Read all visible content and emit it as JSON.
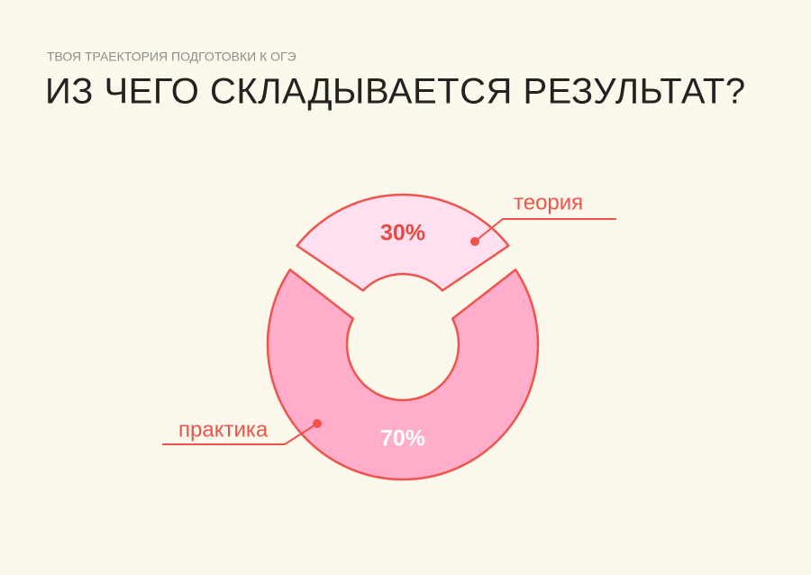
{
  "subtitle": "ТВОЯ ТРАЕКТОРИЯ ПОДГОТОВКИ К ОГЭ",
  "chart_data": {
    "type": "donut",
    "title": "ИЗ ЧЕГО СКЛАДЫВАЕТСЯ РЕЗУЛЬТАТ?",
    "categories": [
      "теория",
      "практика"
    ],
    "values": [
      30,
      70
    ],
    "value_labels": [
      "30%",
      "70%"
    ],
    "colors": [
      "#ffdff0",
      "#ffadcb"
    ],
    "stroke_color": "#f0534a",
    "label_colors": [
      "#e8483f",
      "#ffffff"
    ]
  }
}
